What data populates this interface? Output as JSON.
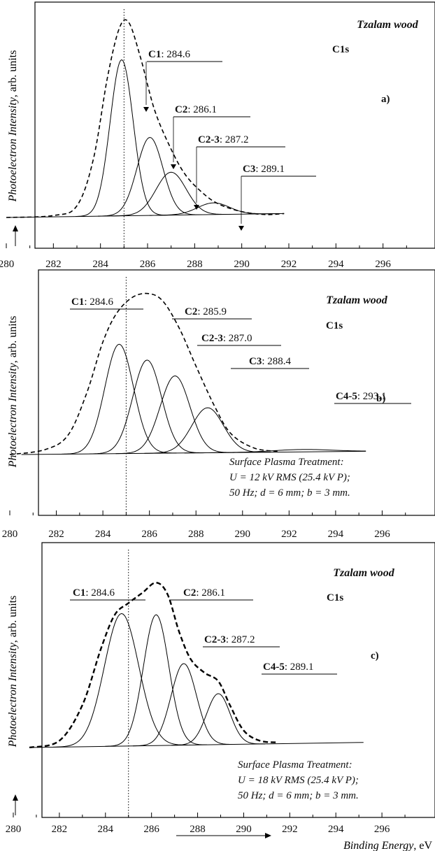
{
  "chart_data": [
    {
      "type": "line",
      "panel_id": "a)",
      "sample": "Tzalam wood",
      "region": "C1s",
      "ylabel_italic": "Photoelectron Intensity",
      "ylabel_tail": ", arb. units",
      "xlim": [
        280,
        298
      ],
      "xticks": [
        280,
        282,
        284,
        286,
        288,
        290,
        292,
        294,
        296
      ],
      "reference_line_x": 285.0,
      "envelope": {
        "style": "dashed",
        "x": [
          280.0,
          282.0,
          283.0,
          283.7,
          284.3,
          284.8,
          285.2,
          285.7,
          286.3,
          287.0,
          287.6,
          288.3,
          289.0,
          290.0,
          291.0,
          291.8
        ],
        "y": [
          0.0,
          0.01,
          0.06,
          0.3,
          0.72,
          0.97,
          1.0,
          0.82,
          0.55,
          0.35,
          0.22,
          0.13,
          0.07,
          0.03,
          0.015,
          0.02
        ]
      },
      "baseline": {
        "x": [
          280.0,
          291.8
        ],
        "y": [
          0.0,
          0.02
        ]
      },
      "components": [
        {
          "label": "C1",
          "value": "284.6",
          "center": 284.9,
          "fwhm": 1.15,
          "height": 0.8
        },
        {
          "label": "C2",
          "value": "286.1",
          "center": 286.1,
          "fwhm": 1.3,
          "height": 0.4
        },
        {
          "label": "C2-3",
          "value": "287.2",
          "center": 287.0,
          "fwhm": 1.5,
          "height": 0.22
        },
        {
          "label": "C3",
          "value": "289.1",
          "center": 288.8,
          "fwhm": 1.6,
          "height": 0.06
        }
      ]
    },
    {
      "type": "line",
      "panel_id": "b)",
      "sample": "Tzalam wood",
      "region": "C1s",
      "ylabel_italic": "Photoelectron Intensity",
      "ylabel_tail": ", arb. units",
      "xlim": [
        280,
        298
      ],
      "xticks": [
        280,
        282,
        284,
        286,
        288,
        290,
        292,
        294,
        296
      ],
      "reference_line_x": 285.0,
      "treatment": {
        "title": "Surface Plasma Treatment",
        "line2": "U = 12 kV RMS (25.4 kV P);",
        "line3": "50 Hz; d = 6 mm; b = 3 mm."
      },
      "envelope": {
        "style": "dashed",
        "x": [
          280.0,
          281.5,
          282.5,
          283.3,
          284.0,
          284.6,
          285.3,
          286.0,
          286.6,
          287.3,
          288.0,
          288.8,
          289.5,
          290.5,
          291.5
        ],
        "y": [
          0.0,
          0.03,
          0.12,
          0.38,
          0.7,
          0.88,
          0.98,
          1.0,
          0.95,
          0.78,
          0.55,
          0.3,
          0.13,
          0.04,
          0.02
        ]
      },
      "baseline": {
        "x": [
          280.5,
          295.3
        ],
        "y": [
          0.0,
          0.02
        ]
      },
      "components": [
        {
          "label": "C1",
          "value": "284.6",
          "center": 284.7,
          "fwhm": 1.45,
          "height": 0.68
        },
        {
          "label": "C2",
          "value": "285.9",
          "center": 285.9,
          "fwhm": 1.45,
          "height": 0.58
        },
        {
          "label": "C2-3",
          "value": "287.0",
          "center": 287.1,
          "fwhm": 1.5,
          "height": 0.48
        },
        {
          "label": "C3",
          "value": "288.4",
          "center": 288.5,
          "fwhm": 1.6,
          "height": 0.28
        },
        {
          "label": "C4-5",
          "value": "293.1",
          "center": 292.6,
          "fwhm": 3.0,
          "height": 0.015
        }
      ]
    },
    {
      "type": "line",
      "panel_id": "c)",
      "sample": "Tzalam wood",
      "region": "C1s",
      "ylabel_italic": "Photoelectron Intensity",
      "ylabel_tail": ", arb. units",
      "xlabel_italic": "Binding Energy",
      "xlabel_tail": ", eV",
      "xlim": [
        280,
        298
      ],
      "xticks": [
        280,
        282,
        284,
        286,
        288,
        290,
        292,
        294,
        296
      ],
      "reference_line_x": 285.0,
      "treatment": {
        "title": "Surface Plasma Treatment",
        "line2": "U = 18 kV RMS (25.4 kV P);",
        "line3": "50 Hz; d = 6 mm; b = 3 mm."
      },
      "envelope": {
        "style": "dashed",
        "x": [
          280.7,
          282.0,
          283.0,
          283.8,
          284.4,
          285.0,
          285.6,
          286.2,
          286.7,
          287.2,
          287.7,
          288.3,
          288.9,
          289.4,
          290.0,
          290.7,
          291.5
        ],
        "y": [
          0.0,
          0.04,
          0.25,
          0.58,
          0.78,
          0.85,
          0.91,
          0.97,
          0.9,
          0.68,
          0.52,
          0.44,
          0.39,
          0.25,
          0.1,
          0.04,
          0.03
        ]
      },
      "baseline": {
        "x": [
          280.7,
          295.2
        ],
        "y": [
          0.0,
          0.03
        ]
      },
      "components": [
        {
          "label": "C1",
          "value": "284.6",
          "center": 284.7,
          "fwhm": 1.75,
          "height": 0.78
        },
        {
          "label": "C2",
          "value": "286.1",
          "center": 286.2,
          "fwhm": 1.3,
          "height": 0.77
        },
        {
          "label": "C2-3",
          "value": "287.2",
          "center": 287.4,
          "fwhm": 1.3,
          "height": 0.48
        },
        {
          "label": "C4-5",
          "value": "289.1",
          "center": 288.9,
          "fwhm": 1.2,
          "height": 0.3
        }
      ]
    }
  ]
}
